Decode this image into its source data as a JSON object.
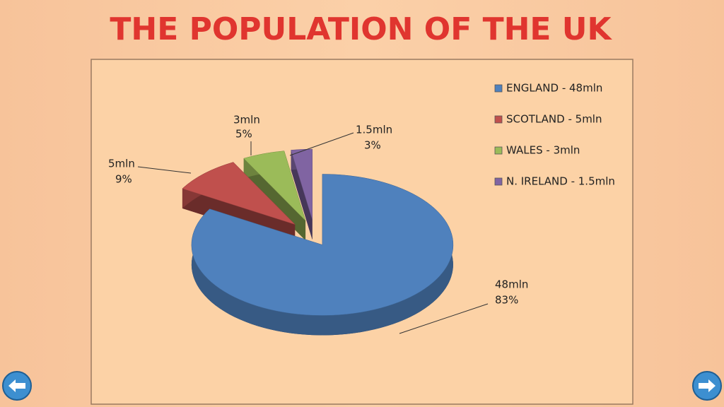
{
  "chart_data": {
    "type": "pie",
    "title": "THE POPULATION OF THE UK",
    "categories": [
      "ENGLAND - 48mln",
      "SCOTLAND - 5mln",
      "WALES - 3mln",
      "N. IRELAND - 1.5mln"
    ],
    "values": [
      48,
      5,
      3,
      1.5
    ],
    "value_labels": [
      "48mln",
      "5mln",
      "3mln",
      "1.5mln"
    ],
    "percentages": [
      83,
      9,
      5,
      3
    ],
    "percentage_labels": [
      "83%",
      "9%",
      "5%",
      "3%"
    ],
    "colors": [
      "#4f81bd",
      "#c0504d",
      "#9bbb59",
      "#8064a2"
    ],
    "legend": "right"
  }
}
